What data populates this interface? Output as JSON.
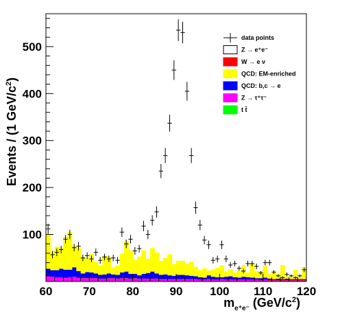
{
  "chart_data": {
    "type": "bar",
    "stacked": true,
    "xlabel": {
      "base": "m",
      "sub": "e⁺e⁻",
      "unit": "(GeV/c",
      "sup": "2",
      "close": ")"
    },
    "ylabel": {
      "text": "Events / (1 GeV/c",
      "sup": "2",
      "close": ")"
    },
    "xlim": [
      60,
      120
    ],
    "ylim": [
      0,
      570
    ],
    "x_ticks": [
      "60",
      "70",
      "80",
      "90",
      "100",
      "110",
      "120"
    ],
    "y_ticks": [
      "100",
      "200",
      "300",
      "400",
      "500"
    ],
    "bin_width": 1,
    "bins_low_edges": [
      60,
      61,
      62,
      63,
      64,
      65,
      66,
      67,
      68,
      69,
      70,
      71,
      72,
      73,
      74,
      75,
      76,
      77,
      78,
      79,
      80,
      81,
      82,
      83,
      84,
      85,
      86,
      87,
      88,
      89,
      90,
      91,
      92,
      93,
      94,
      95,
      96,
      97,
      98,
      99,
      100,
      101,
      102,
      103,
      104,
      105,
      106,
      107,
      108,
      109,
      110,
      111,
      112,
      113,
      114,
      115,
      116,
      117,
      118,
      119
    ],
    "series": [
      {
        "name": "Z → τ⁺τ⁻",
        "color": "#ff00ff",
        "values": [
          10,
          9,
          8,
          8,
          7,
          8,
          9,
          7,
          6,
          6,
          6,
          6,
          5,
          5,
          6,
          6,
          5,
          6,
          6,
          5,
          6,
          5,
          5,
          5,
          5,
          5,
          4,
          4,
          4,
          4,
          4,
          4,
          4,
          4,
          4,
          3,
          3,
          4,
          3,
          3,
          4,
          3,
          3,
          3,
          3,
          3,
          3,
          3,
          3,
          2,
          3,
          2,
          2,
          2,
          2,
          2,
          2,
          2,
          2,
          2
        ]
      },
      {
        "name": "W → e ν",
        "color": "#ff0000",
        "values": [
          1,
          1,
          1,
          1,
          1,
          1,
          1,
          1,
          1,
          1,
          1,
          1,
          1,
          1,
          1,
          1,
          1,
          1,
          1,
          1,
          1,
          1,
          1,
          1,
          1,
          1,
          1,
          1,
          1,
          1,
          1,
          1,
          1,
          1,
          1,
          1,
          1,
          1,
          1,
          1,
          1,
          1,
          1,
          1,
          1,
          1,
          1,
          1,
          1,
          1,
          1,
          1,
          1,
          1,
          1,
          1,
          1,
          1,
          1,
          1
        ]
      },
      {
        "name": "QCD: b,c → e",
        "color": "#0000ff",
        "values": [
          16,
          14,
          15,
          18,
          17,
          16,
          20,
          14,
          10,
          13,
          12,
          10,
          8,
          9,
          10,
          8,
          8,
          12,
          14,
          10,
          9,
          7,
          10,
          12,
          15,
          11,
          9,
          10,
          8,
          7,
          9,
          9,
          8,
          7,
          6,
          5,
          4,
          8,
          6,
          5,
          4,
          6,
          7,
          5,
          4,
          6,
          5,
          4,
          3,
          4,
          4,
          3,
          2,
          3,
          2,
          3,
          2,
          2,
          2,
          2
        ]
      },
      {
        "name": "QCD: EM-enriched",
        "color": "#ffff00",
        "values": [
          74,
          40,
          50,
          45,
          70,
          80,
          45,
          50,
          35,
          30,
          40,
          25,
          20,
          40,
          35,
          15,
          20,
          40,
          65,
          50,
          30,
          40,
          50,
          30,
          50,
          45,
          30,
          35,
          45,
          25,
          30,
          30,
          25,
          30,
          20,
          15,
          20,
          10,
          15,
          20,
          25,
          10,
          15,
          10,
          15,
          25,
          10,
          30,
          15,
          15,
          25,
          10,
          15,
          10,
          30,
          5,
          5,
          20,
          5,
          25
        ]
      },
      {
        "name": "Z → e⁺e⁻",
        "color": "#ffffff",
        "values": [
          0,
          0,
          0,
          0,
          0,
          0,
          0,
          0,
          0,
          0,
          0,
          0,
          0,
          0,
          0,
          0,
          0,
          0,
          0,
          0,
          0,
          0,
          0,
          0,
          0,
          0,
          0,
          0,
          0,
          0,
          0,
          0,
          0,
          0,
          0,
          0,
          0,
          0,
          0,
          0,
          0,
          0,
          0,
          0,
          0,
          0,
          0,
          0,
          0,
          0,
          0,
          0,
          0,
          0,
          0,
          0,
          0,
          0,
          0,
          0
        ]
      },
      {
        "name": "t t̄",
        "color": "#00ff00",
        "values": [
          0,
          0,
          0,
          0,
          0,
          0,
          0,
          0,
          0,
          0,
          0,
          0,
          0,
          0,
          0,
          0,
          0,
          0,
          0,
          0,
          0,
          0,
          0,
          0,
          0,
          0,
          0,
          0,
          0,
          0,
          0,
          0,
          0,
          0,
          0,
          0,
          0,
          0,
          0,
          0,
          0,
          0,
          0,
          0,
          0,
          0,
          0,
          0,
          0,
          0,
          0,
          0,
          0,
          0,
          0,
          0,
          0,
          0,
          0,
          0
        ]
      }
    ],
    "data_points": {
      "name": "data points",
      "points": [
        [
          60.5,
          112
        ],
        [
          61.5,
          57
        ],
        [
          62.5,
          62
        ],
        [
          63.5,
          68
        ],
        [
          64.5,
          90
        ],
        [
          65.5,
          100
        ],
        [
          66.5,
          72
        ],
        [
          67.5,
          75
        ],
        [
          68.5,
          50
        ],
        [
          69.5,
          55
        ],
        [
          70.5,
          48
        ],
        [
          71.5,
          62
        ],
        [
          72.5,
          45
        ],
        [
          73.5,
          52
        ],
        [
          74.5,
          48
        ],
        [
          75.5,
          50
        ],
        [
          76.5,
          45
        ],
        [
          77.5,
          105
        ],
        [
          78.5,
          80
        ],
        [
          79.5,
          90
        ],
        [
          80.5,
          65
        ],
        [
          81.5,
          70
        ],
        [
          82.5,
          118
        ],
        [
          83.5,
          100
        ],
        [
          84.5,
          130
        ],
        [
          85.5,
          148
        ],
        [
          86.5,
          235
        ],
        [
          87.5,
          268
        ],
        [
          88.5,
          337
        ],
        [
          89.5,
          450
        ],
        [
          90.5,
          535
        ],
        [
          91.5,
          530
        ],
        [
          92.5,
          405
        ],
        [
          93.5,
          268
        ],
        [
          94.5,
          157
        ],
        [
          95.5,
          120
        ],
        [
          96.5,
          88
        ],
        [
          97.5,
          78
        ],
        [
          98.5,
          45
        ],
        [
          99.5,
          48
        ],
        [
          100.5,
          78
        ],
        [
          101.5,
          48
        ],
        [
          102.5,
          35
        ],
        [
          103.5,
          38
        ],
        [
          104.5,
          28
        ],
        [
          105.5,
          22
        ],
        [
          106.5,
          38
        ],
        [
          107.5,
          38
        ],
        [
          108.5,
          32
        ],
        [
          109.5,
          18
        ],
        [
          110.5,
          40
        ],
        [
          111.5,
          40
        ],
        [
          112.5,
          20
        ],
        [
          113.5,
          12
        ],
        [
          114.5,
          8
        ],
        [
          115.5,
          15
        ],
        [
          116.5,
          12
        ],
        [
          117.5,
          8
        ],
        [
          118.5,
          12
        ],
        [
          119.5,
          25
        ]
      ],
      "errors": [
        11,
        8,
        8,
        8,
        9,
        10,
        8,
        9,
        7,
        7,
        7,
        8,
        7,
        7,
        7,
        7,
        7,
        10,
        9,
        9,
        8,
        8,
        11,
        10,
        11,
        12,
        15,
        16,
        18,
        21,
        23,
        23,
        20,
        16,
        13,
        11,
        9,
        9,
        7,
        7,
        9,
        7,
        6,
        6,
        5,
        5,
        6,
        6,
        6,
        4,
        6,
        6,
        4,
        3,
        3,
        4,
        3,
        3,
        3,
        5
      ]
    },
    "legend": {
      "placement": "top-right",
      "entries": [
        {
          "label": "data points",
          "style": "marker"
        },
        {
          "label": "Z → e⁺e⁻",
          "style": "box",
          "fill": "#ffffff"
        },
        {
          "label": "W → e ν",
          "style": "box",
          "fill": "#ff0000"
        },
        {
          "label": "QCD: EM-enriched",
          "style": "box",
          "fill": "#ffff00"
        },
        {
          "label": "QCD: b,c → e",
          "style": "box",
          "fill": "#0000ff"
        },
        {
          "label": "Z → τ⁺τ⁻",
          "style": "box",
          "fill": "#ff00ff"
        },
        {
          "label": "t t̄",
          "style": "box",
          "fill": "#00ff00"
        }
      ]
    }
  }
}
